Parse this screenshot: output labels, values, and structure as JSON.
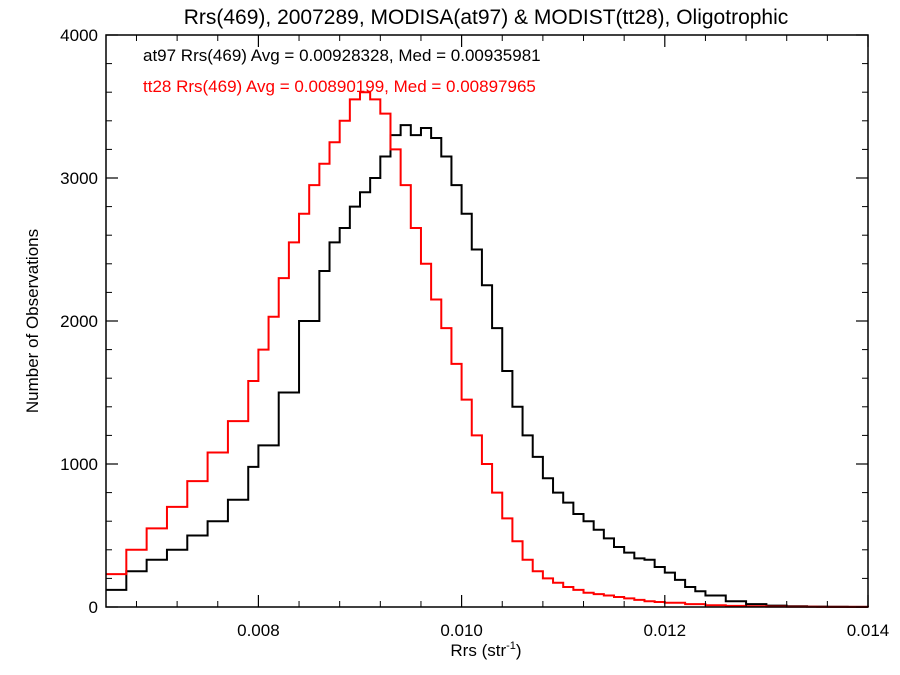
{
  "chart_data": {
    "type": "line",
    "title": "Rrs(469), 2007289, MODISA(at97) & MODIST(tt28), Oligotrophic",
    "xlabel_main": "Rrs (str",
    "xlabel_sup": "-1",
    "xlabel_close": ")",
    "ylabel": "Number of Observations",
    "xlim": [
      0.0065,
      0.014
    ],
    "ylim": [
      0,
      4000
    ],
    "x_ticks": [
      {
        "value": 0.008,
        "label": "0.008"
      },
      {
        "value": 0.01,
        "label": "0.010"
      },
      {
        "value": 0.012,
        "label": "0.012"
      },
      {
        "value": 0.014,
        "label": "0.014"
      }
    ],
    "y_ticks": [
      {
        "value": 0,
        "label": "0"
      },
      {
        "value": 1000,
        "label": "1000"
      },
      {
        "value": 2000,
        "label": "2000"
      },
      {
        "value": 3000,
        "label": "3000"
      },
      {
        "value": 4000,
        "label": "4000"
      }
    ],
    "legend": [
      {
        "text": "at97 Rrs(469) Avg = 0.00928328, Med = 0.00935981",
        "color": "#000000"
      },
      {
        "text": "tt28 Rrs(469) Avg = 0.00890199, Med = 0.00897965",
        "color": "#ff0000"
      }
    ],
    "legend_position": "top-left",
    "series": [
      {
        "color": "#000000",
        "x": [
          0.0065,
          0.0067,
          0.0069,
          0.0071,
          0.0073,
          0.0075,
          0.0077,
          0.0079,
          0.008,
          0.0082,
          0.0084,
          0.0086,
          0.0087,
          0.0088,
          0.0089,
          0.009,
          0.0091,
          0.0092,
          0.0093,
          0.0094,
          0.0095,
          0.0096,
          0.0097,
          0.0098,
          0.0099,
          0.01,
          0.0101,
          0.0102,
          0.0103,
          0.0104,
          0.0105,
          0.0106,
          0.0107,
          0.0108,
          0.0109,
          0.011,
          0.0111,
          0.0112,
          0.0113,
          0.0114,
          0.0115,
          0.0116,
          0.0117,
          0.0118,
          0.0119,
          0.012,
          0.0121,
          0.0122,
          0.0123,
          0.0124,
          0.0126,
          0.0128,
          0.013,
          0.0132,
          0.0134,
          0.0136,
          0.0138,
          0.014
        ],
        "y": [
          120,
          250,
          330,
          400,
          500,
          600,
          750,
          980,
          1130,
          1500,
          2000,
          2350,
          2550,
          2650,
          2800,
          2900,
          3000,
          3150,
          3300,
          3370,
          3300,
          3350,
          3280,
          3150,
          2950,
          2750,
          2500,
          2250,
          1950,
          1650,
          1400,
          1200,
          1050,
          900,
          800,
          730,
          650,
          600,
          540,
          480,
          420,
          380,
          340,
          330,
          280,
          240,
          190,
          140,
          110,
          80,
          40,
          20,
          10,
          5,
          3,
          2,
          1,
          0
        ]
      },
      {
        "color": "#ff0000",
        "x": [
          0.0065,
          0.0067,
          0.0069,
          0.0071,
          0.0073,
          0.0075,
          0.0077,
          0.0079,
          0.008,
          0.0081,
          0.0082,
          0.0083,
          0.0084,
          0.0085,
          0.0086,
          0.0087,
          0.0088,
          0.0089,
          0.009,
          0.0091,
          0.0092,
          0.0093,
          0.0094,
          0.0095,
          0.0096,
          0.0097,
          0.0098,
          0.0099,
          0.01,
          0.0101,
          0.0102,
          0.0103,
          0.0104,
          0.0105,
          0.0106,
          0.0107,
          0.0108,
          0.0109,
          0.011,
          0.0111,
          0.0112,
          0.0113,
          0.0114,
          0.0115,
          0.0116,
          0.0117,
          0.0118,
          0.0119,
          0.012,
          0.0122,
          0.0124,
          0.0126,
          0.0128,
          0.013,
          0.0132,
          0.0135,
          0.014
        ],
        "y": [
          230,
          400,
          550,
          700,
          880,
          1080,
          1300,
          1580,
          1800,
          2030,
          2300,
          2550,
          2750,
          2950,
          3100,
          3250,
          3400,
          3550,
          3600,
          3550,
          3450,
          3200,
          2950,
          2650,
          2400,
          2150,
          1950,
          1700,
          1450,
          1200,
          1000,
          800,
          620,
          460,
          330,
          250,
          200,
          170,
          140,
          120,
          100,
          90,
          80,
          70,
          60,
          50,
          40,
          35,
          30,
          20,
          12,
          8,
          5,
          3,
          2,
          1,
          0
        ]
      }
    ]
  }
}
